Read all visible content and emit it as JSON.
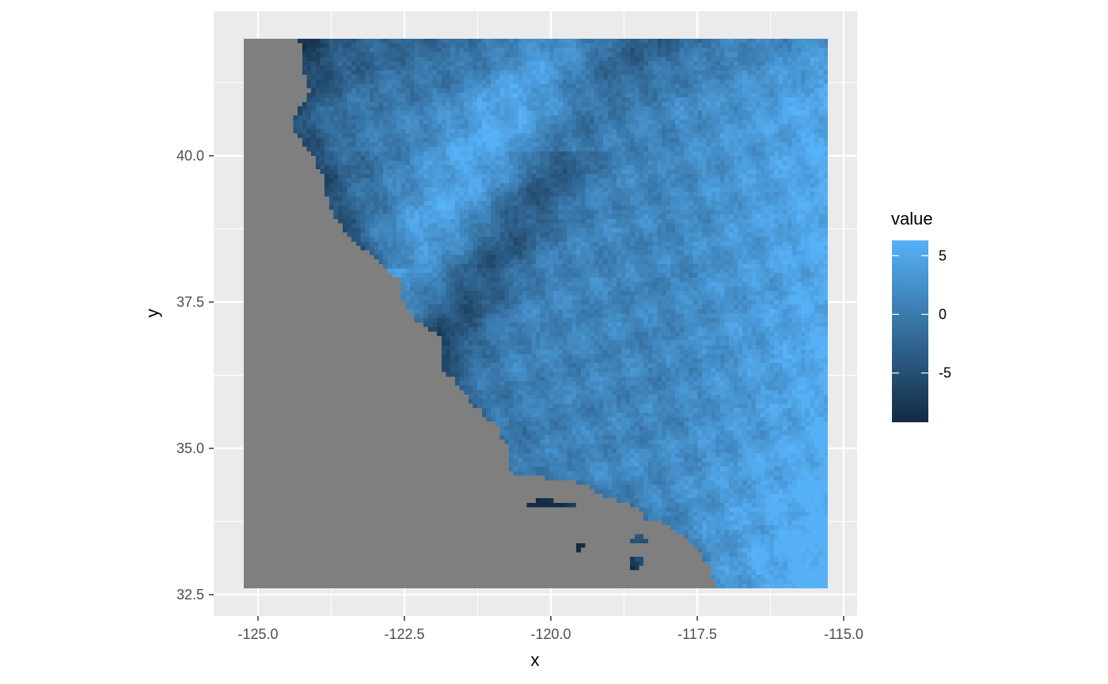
{
  "chart_data": {
    "type": "heatmap",
    "title": "",
    "xlabel": "x",
    "ylabel": "y",
    "xlim": [
      -125.2,
      -115.2
    ],
    "ylim": [
      32.5,
      42.0
    ],
    "x_ticks": [
      -125.0,
      -122.5,
      -120.0,
      -117.5,
      -115.0
    ],
    "x_tick_labels": [
      "-125.0",
      "-122.5",
      "-120.0",
      "-117.5",
      "-115.0"
    ],
    "y_ticks": [
      32.5,
      35.0,
      37.5,
      40.0
    ],
    "y_tick_labels": [
      "32.5",
      "35.0",
      "37.5",
      "40.0"
    ],
    "grid": true,
    "panel_background": "#ebebeb",
    "na_color": "#7f7f7f",
    "legend": {
      "title": "value",
      "position": "right",
      "range": [
        -9.2,
        6.3
      ],
      "breaks": [
        5,
        0,
        -5
      ],
      "break_labels": [
        "5",
        "0",
        "-5"
      ],
      "low_color": "#132b43",
      "high_color": "#56b1f7"
    },
    "raster_extent": {
      "x": [
        -125.2,
        -115.2
      ],
      "y": [
        32.55,
        41.95
      ]
    },
    "data_description_values": {
      "north_coast_min": -9.2,
      "central_valley_approx": 3.5,
      "sierra_approx": -3.0,
      "southeast_max": 6.3
    }
  }
}
